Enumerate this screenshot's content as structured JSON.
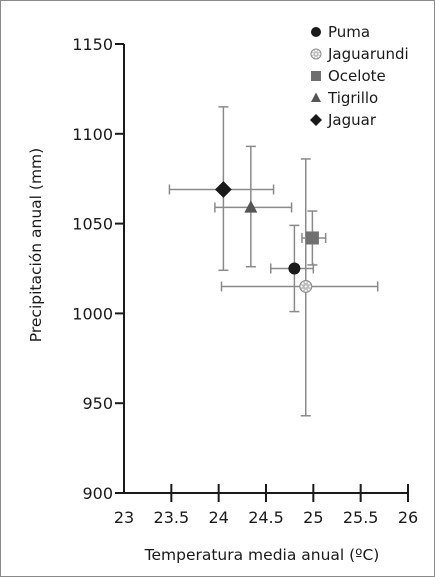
{
  "chart_data": {
    "type": "scatter",
    "title": "",
    "xlabel": "Temperatura media anual (ºC)",
    "ylabel": "Precipitación anual (mm)",
    "xlim": [
      23,
      26
    ],
    "ylim": [
      900,
      1150
    ],
    "x_ticks": [
      {
        "v": 23,
        "label": "23"
      },
      {
        "v": 23.5,
        "label": "23.5"
      },
      {
        "v": 24,
        "label": "24"
      },
      {
        "v": 24.5,
        "label": "24.5"
      },
      {
        "v": 25,
        "label": "25"
      },
      {
        "v": 25.5,
        "label": "25.5"
      },
      {
        "v": 26,
        "label": "26"
      }
    ],
    "y_ticks": [
      {
        "v": 900,
        "label": "900"
      },
      {
        "v": 950,
        "label": "950"
      },
      {
        "v": 1000,
        "label": "1000"
      },
      {
        "v": 1050,
        "label": "1050"
      },
      {
        "v": 1100,
        "label": "1100"
      },
      {
        "v": 1150,
        "label": "1150"
      }
    ],
    "grid": false,
    "legend_position": "top-right",
    "series": [
      {
        "name": "Puma",
        "marker": "circle",
        "color": "#1a1a1a",
        "x": 24.8,
        "y": 1025,
        "x_err": [
          24.55,
          25.0
        ],
        "y_err": [
          1001,
          1049
        ]
      },
      {
        "name": "Jaguarundi",
        "marker": "dotted-circle",
        "color": "#8c8c8c",
        "x": 24.92,
        "y": 1015,
        "x_err": [
          24.03,
          25.68
        ],
        "y_err": [
          943,
          1086
        ]
      },
      {
        "name": "Ocelote",
        "marker": "square",
        "color": "#6f6f6f",
        "x": 24.99,
        "y": 1042,
        "x_err": [
          24.88,
          25.13
        ],
        "y_err": [
          1027,
          1057
        ]
      },
      {
        "name": "Tigrillo",
        "marker": "triangle",
        "color": "#555555",
        "x": 24.34,
        "y": 1059,
        "x_err": [
          23.96,
          24.77
        ],
        "y_err": [
          1026,
          1093
        ]
      },
      {
        "name": "Jaguar",
        "marker": "diamond",
        "color": "#1a1a1a",
        "x": 24.05,
        "y": 1069,
        "x_err": [
          23.48,
          24.58
        ],
        "y_err": [
          1024,
          1115
        ]
      }
    ]
  }
}
